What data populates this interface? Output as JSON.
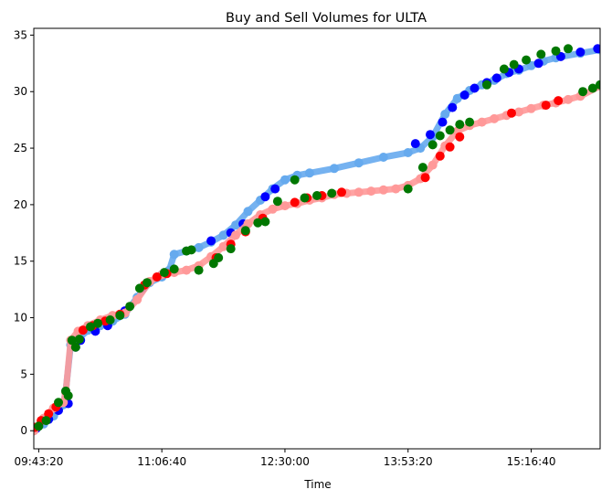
{
  "chart_data": {
    "type": "scatter",
    "title": "Buy and Sell Volumes for ULTA",
    "xlabel": "Time",
    "ylabel": "",
    "x_unit": "seconds since midnight",
    "xlim": [
      34800,
      57800
    ],
    "ylim": [
      -1.6,
      35.6
    ],
    "x_ticks": [
      {
        "value": 35000,
        "label": "09:43:20"
      },
      {
        "value": 40000,
        "label": "11:06:40"
      },
      {
        "value": 45000,
        "label": "12:30:00"
      },
      {
        "value": 50000,
        "label": "13:53:20"
      },
      {
        "value": 55000,
        "label": "15:16:40"
      }
    ],
    "y_ticks": [
      {
        "value": 0,
        "label": "0"
      },
      {
        "value": 5,
        "label": "5"
      },
      {
        "value": 10,
        "label": "10"
      },
      {
        "value": 15,
        "label": "15"
      },
      {
        "value": 20,
        "label": "20"
      },
      {
        "value": 25,
        "label": "25"
      },
      {
        "value": 30,
        "label": "30"
      },
      {
        "value": 35,
        "label": "35"
      }
    ],
    "grid": false,
    "series": [
      {
        "color": "#66aaee",
        "x": [
          34800,
          35200,
          35600,
          36000,
          36100,
          36300,
          36600,
          37000,
          37500,
          38000,
          38500,
          39000,
          39500,
          40000,
          40300,
          40500,
          41000,
          41500,
          42000,
          42500,
          43000,
          43500,
          44000,
          44500,
          45000,
          45500,
          46000,
          47000,
          48000,
          49000,
          50000,
          50500,
          51000,
          51500,
          52000,
          52500,
          53000,
          53500,
          54000,
          54500,
          55000,
          55500,
          56000,
          57000,
          57800
        ],
        "y": [
          0,
          0.6,
          1.3,
          2.3,
          3.5,
          7.6,
          8.1,
          8.9,
          9.3,
          9.7,
          10.3,
          11.8,
          13.1,
          13.6,
          14.2,
          15.6,
          15.9,
          16.2,
          16.7,
          17.3,
          18.2,
          19.4,
          20.4,
          21.4,
          22.2,
          22.6,
          22.8,
          23.2,
          23.7,
          24.2,
          24.6,
          25.0,
          26.0,
          28.0,
          29.4,
          30.1,
          30.6,
          31.0,
          31.6,
          31.9,
          32.3,
          32.7,
          33.0,
          33.4,
          33.7
        ]
      },
      {
        "color": "#0000ff",
        "x": [
          34900,
          35400,
          35800,
          36200,
          36500,
          36700,
          37300,
          37800,
          38500,
          39200,
          40000,
          42000,
          42800,
          43300,
          44200,
          44600,
          50300,
          50900,
          51400,
          51800,
          52300,
          52700,
          53200,
          53600,
          54100,
          54500,
          55300,
          56200,
          57000,
          57700
        ],
        "y": [
          0.2,
          1.0,
          1.8,
          2.4,
          7.4,
          8.0,
          8.8,
          9.3,
          10.6,
          12.6,
          13.8,
          16.8,
          17.5,
          18.3,
          20.7,
          21.4,
          25.4,
          26.2,
          27.3,
          28.6,
          29.7,
          30.3,
          30.8,
          31.2,
          31.7,
          32.0,
          32.5,
          33.1,
          33.5,
          33.8
        ]
      },
      {
        "color": "#ff9999",
        "x": [
          34800,
          35200,
          35600,
          36000,
          36100,
          36300,
          36600,
          37000,
          37500,
          38000,
          38500,
          39000,
          39500,
          40000,
          40500,
          41000,
          41500,
          42000,
          42500,
          43000,
          43500,
          44000,
          44500,
          45000,
          45500,
          46000,
          46500,
          47000,
          47500,
          48000,
          48500,
          49000,
          49500,
          50000,
          50500,
          51000,
          51500,
          52000,
          52500,
          53000,
          53500,
          54000,
          54500,
          55000,
          55500,
          56000,
          56500,
          57000,
          57800
        ],
        "y": [
          0,
          1.1,
          2.0,
          2.5,
          3.4,
          8.0,
          8.8,
          9.3,
          9.8,
          10.2,
          10.4,
          11.6,
          13.2,
          13.8,
          14.0,
          14.2,
          14.6,
          15.4,
          16.3,
          17.3,
          18.3,
          19.1,
          19.6,
          19.9,
          20.1,
          20.4,
          20.6,
          20.9,
          21.0,
          21.1,
          21.2,
          21.3,
          21.4,
          21.7,
          22.3,
          23.5,
          25.2,
          26.5,
          27.0,
          27.3,
          27.6,
          27.9,
          28.2,
          28.5,
          28.8,
          29.0,
          29.3,
          29.6,
          30.5
        ]
      },
      {
        "color": "#ff0000",
        "x": [
          34850,
          35100,
          35400,
          35700,
          36800,
          37200,
          37700,
          38300,
          39300,
          39800,
          40200,
          42200,
          42800,
          43400,
          44100,
          45400,
          45900,
          46500,
          47300,
          50700,
          51300,
          51700,
          52100,
          54200,
          55600,
          56100
        ],
        "y": [
          0.3,
          0.9,
          1.5,
          2.1,
          8.9,
          9.3,
          9.7,
          10.3,
          12.9,
          13.6,
          13.9,
          15.3,
          16.5,
          17.6,
          18.8,
          20.2,
          20.6,
          20.8,
          21.1,
          22.4,
          24.3,
          25.1,
          26.0,
          28.1,
          28.8,
          29.2
        ]
      },
      {
        "color": "#007700",
        "x": [
          35000,
          35300,
          35800,
          36100,
          36200,
          36350,
          36500,
          36650,
          37100,
          37400,
          37900,
          38300,
          38700,
          39100,
          39400,
          40100,
          40500,
          41000,
          41200,
          41500,
          42100,
          42300,
          42800,
          43400,
          43900,
          44200,
          44700,
          45400,
          45800,
          46300,
          46900,
          50000,
          50600,
          51000,
          51300,
          51700,
          52100,
          52500,
          53200,
          53900,
          54300,
          54800,
          55400,
          56000,
          56500,
          57100,
          57500,
          57800
        ],
        "y": [
          0.4,
          0.9,
          2.5,
          3.5,
          3.1,
          8.0,
          7.4,
          8.1,
          9.2,
          9.5,
          9.8,
          10.2,
          11.0,
          12.6,
          13.1,
          14.0,
          14.3,
          15.9,
          16.0,
          14.2,
          14.8,
          15.3,
          16.1,
          17.7,
          18.4,
          18.5,
          20.3,
          22.2,
          20.6,
          20.8,
          21.0,
          21.4,
          23.3,
          25.3,
          26.1,
          26.6,
          27.1,
          27.3,
          30.6,
          32.0,
          32.4,
          32.8,
          33.3,
          33.6,
          33.8,
          30.0,
          30.3,
          30.6
        ]
      }
    ]
  }
}
